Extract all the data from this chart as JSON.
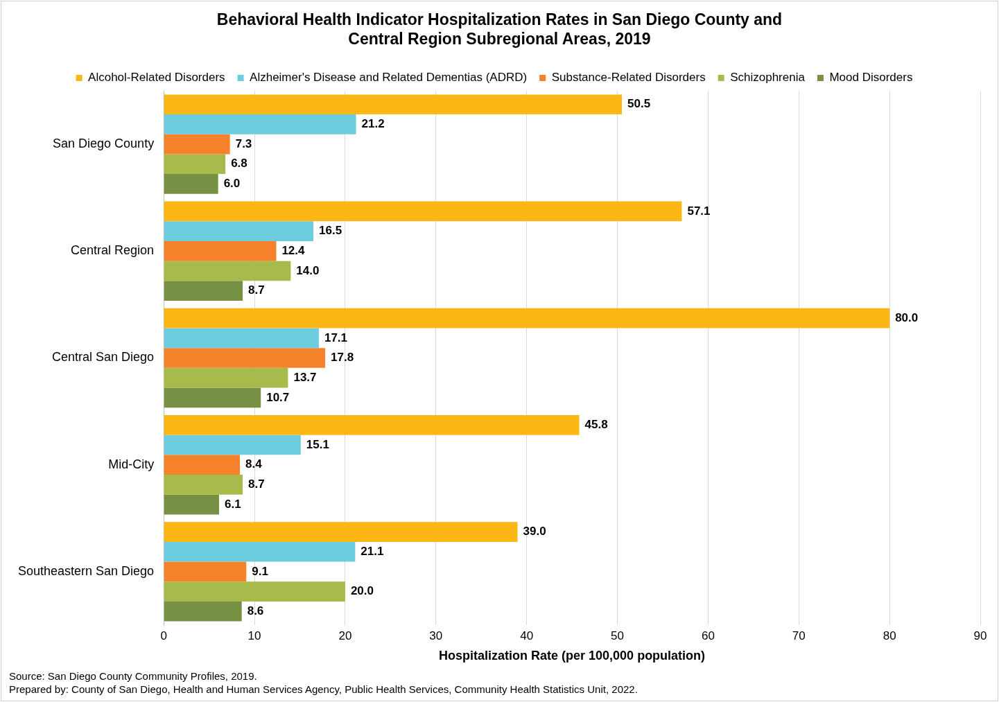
{
  "chart_data": {
    "type": "bar",
    "orientation": "horizontal",
    "title": "Behavioral Health Indicator Hospitalization Rates in San Diego County and Central Region Subregional Areas, 2019",
    "xlabel": "Hospitalization Rate (per 100,000 population)",
    "categories": [
      "San Diego County",
      "Central Region",
      "Central San Diego",
      "Mid-City",
      "Southeastern San Diego"
    ],
    "series": [
      {
        "name": "Alcohol-Related Disorders",
        "color": "#fdb714",
        "values": [
          50.5,
          57.1,
          80.0,
          45.8,
          39.0
        ],
        "value_labels": [
          "50.5",
          "57.1",
          "80.0",
          "45.8",
          "39.0"
        ]
      },
      {
        "name": "Alzheimer's Disease and Related Dementias (ADRD)",
        "color": "#6dcddf",
        "values": [
          21.2,
          16.5,
          17.1,
          15.1,
          21.1
        ],
        "value_labels": [
          "21.2",
          "16.5",
          "17.1",
          "15.1",
          "21.1"
        ]
      },
      {
        "name": "Substance-Related Disorders",
        "color": "#f5812a",
        "values": [
          7.3,
          12.4,
          17.8,
          8.4,
          9.1
        ],
        "value_labels": [
          "7.3",
          "12.4",
          "17.8",
          "8.4",
          "9.1"
        ]
      },
      {
        "name": "Schizophrenia",
        "color": "#a6bb4b",
        "values": [
          6.8,
          14.0,
          13.7,
          8.7,
          20.0
        ],
        "value_labels": [
          "6.8",
          "14.0",
          "13.7",
          "8.7",
          "20.0"
        ]
      },
      {
        "name": "Mood Disorders",
        "color": "#779144",
        "values": [
          6.0,
          8.7,
          10.7,
          6.1,
          8.6
        ],
        "value_labels": [
          "6.0",
          "8.7",
          "10.7",
          "6.1",
          "8.6"
        ]
      }
    ],
    "xlim": [
      0,
      90
    ],
    "xticks": [
      0,
      10,
      20,
      30,
      40,
      50,
      60,
      70,
      80,
      90
    ],
    "grid": "x",
    "legend": "top",
    "annotations": [
      "Source: San Diego County Community Profiles, 2019.",
      "Prepared by: County of San Diego, Health and Human Services Agency, Public Health Services, Community Health Statistics Unit, 2022."
    ]
  }
}
